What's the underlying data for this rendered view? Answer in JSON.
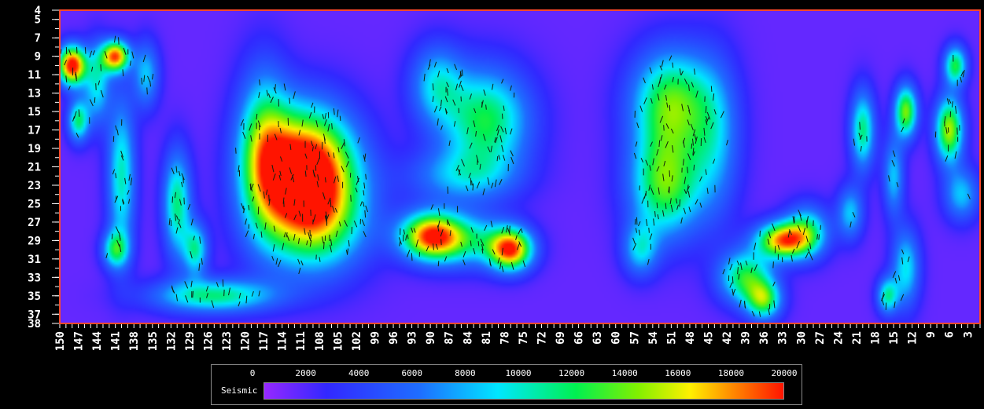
{
  "chart_data": {
    "type": "heatmap",
    "x_ticks": [
      150,
      147,
      144,
      141,
      138,
      135,
      132,
      129,
      126,
      123,
      120,
      117,
      114,
      111,
      108,
      105,
      102,
      99,
      96,
      93,
      90,
      87,
      84,
      81,
      78,
      75,
      72,
      69,
      66,
      63,
      60,
      57,
      54,
      51,
      48,
      45,
      42,
      39,
      36,
      33,
      30,
      27,
      24,
      21,
      18,
      15,
      12,
      9,
      6,
      3
    ],
    "y_ticks": [
      4,
      5,
      7,
      9,
      11,
      13,
      15,
      17,
      19,
      21,
      23,
      25,
      27,
      29,
      31,
      33,
      35,
      37,
      38
    ],
    "x_range": [
      150,
      1
    ],
    "y_range": [
      4,
      38
    ],
    "colorbar": {
      "label": "Seismic",
      "min": 0,
      "max": 20000,
      "ticks": [
        0,
        2000,
        4000,
        6000,
        8000,
        10000,
        12000,
        14000,
        16000,
        18000,
        20000
      ]
    },
    "hotspots": [
      {
        "x": 110,
        "y": 21,
        "sx": 5.5,
        "sy": 4.5,
        "value": 20000
      },
      {
        "x": 109,
        "y": 27,
        "sx": 6,
        "sy": 4,
        "value": 11000
      },
      {
        "x": 117,
        "y": 19,
        "sx": 3,
        "sy": 6,
        "value": 10000
      },
      {
        "x": 148,
        "y": 10,
        "sx": 1.6,
        "sy": 1.5,
        "value": 20000
      },
      {
        "x": 141,
        "y": 9,
        "sx": 1.6,
        "sy": 1.2,
        "value": 17000
      },
      {
        "x": 144,
        "y": 12,
        "sx": 1.5,
        "sy": 3,
        "value": 8000
      },
      {
        "x": 147,
        "y": 16,
        "sx": 1.2,
        "sy": 1.6,
        "value": 10000
      },
      {
        "x": 140,
        "y": 22,
        "sx": 1.6,
        "sy": 6,
        "value": 9000
      },
      {
        "x": 136,
        "y": 11,
        "sx": 1.5,
        "sy": 2.5,
        "value": 7000
      },
      {
        "x": 131,
        "y": 25,
        "sx": 1.6,
        "sy": 4,
        "value": 10000
      },
      {
        "x": 128,
        "y": 30,
        "sx": 1.4,
        "sy": 2,
        "value": 9000
      },
      {
        "x": 141,
        "y": 30,
        "sx": 1.5,
        "sy": 1.4,
        "value": 9000
      },
      {
        "x": 125,
        "y": 35,
        "sx": 7,
        "sy": 1.3,
        "value": 10000
      },
      {
        "x": 90,
        "y": 28.5,
        "sx": 3.5,
        "sy": 1.8,
        "value": 16000
      },
      {
        "x": 77,
        "y": 30,
        "sx": 2.5,
        "sy": 1.6,
        "value": 17000
      },
      {
        "x": 84,
        "y": 29,
        "sx": 5,
        "sy": 2,
        "value": 8000
      },
      {
        "x": 81,
        "y": 16,
        "sx": 5,
        "sy": 4,
        "value": 11000
      },
      {
        "x": 89,
        "y": 12,
        "sx": 3,
        "sy": 3,
        "value": 7000
      },
      {
        "x": 85,
        "y": 22,
        "sx": 6,
        "sy": 2,
        "value": 6000
      },
      {
        "x": 51,
        "y": 14,
        "sx": 4.5,
        "sy": 4,
        "value": 12000
      },
      {
        "x": 52,
        "y": 23,
        "sx": 4,
        "sy": 4,
        "value": 12000
      },
      {
        "x": 56,
        "y": 30,
        "sx": 2,
        "sy": 2,
        "value": 7000
      },
      {
        "x": 44,
        "y": 18,
        "sx": 3,
        "sy": 6,
        "value": 6000
      },
      {
        "x": 33,
        "y": 29,
        "sx": 3,
        "sy": 1.4,
        "value": 16000
      },
      {
        "x": 39,
        "y": 33,
        "sx": 3,
        "sy": 2,
        "value": 11000
      },
      {
        "x": 36,
        "y": 35.5,
        "sx": 2,
        "sy": 1.5,
        "value": 11000
      },
      {
        "x": 29,
        "y": 28,
        "sx": 2.5,
        "sy": 2,
        "value": 9000
      },
      {
        "x": 13,
        "y": 15,
        "sx": 1.3,
        "sy": 2,
        "value": 13000
      },
      {
        "x": 6,
        "y": 17,
        "sx": 1.6,
        "sy": 2.5,
        "value": 14000
      },
      {
        "x": 5,
        "y": 10,
        "sx": 1.3,
        "sy": 1.5,
        "value": 11000
      },
      {
        "x": 20,
        "y": 17,
        "sx": 1.4,
        "sy": 3,
        "value": 10000
      },
      {
        "x": 15,
        "y": 22,
        "sx": 1.2,
        "sy": 3,
        "value": 7000
      },
      {
        "x": 13,
        "y": 32,
        "sx": 1.6,
        "sy": 3,
        "value": 8000
      },
      {
        "x": 16,
        "y": 35,
        "sx": 1.2,
        "sy": 1.4,
        "value": 9000
      },
      {
        "x": 4,
        "y": 24,
        "sx": 2,
        "sy": 2,
        "value": 7000
      },
      {
        "x": 22,
        "y": 26,
        "sx": 1.5,
        "sy": 2,
        "value": 7000
      }
    ],
    "grid": false
  }
}
